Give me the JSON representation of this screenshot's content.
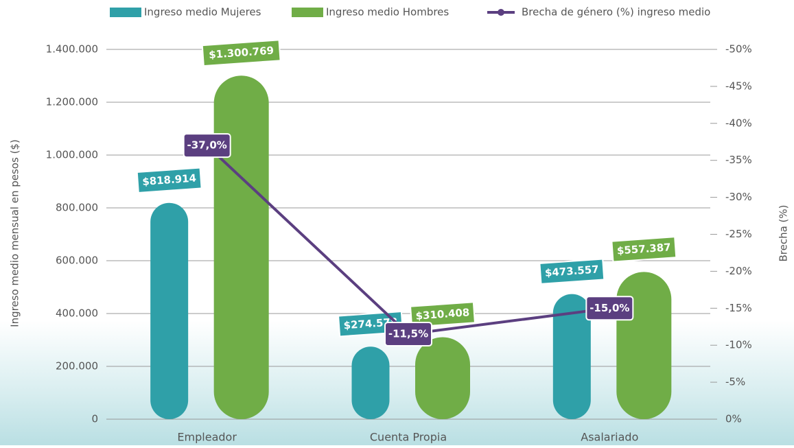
{
  "chart_data": {
    "type": "bar",
    "categories": [
      "Empleador",
      "Cuenta Propia",
      "Asalariado"
    ],
    "series": [
      {
        "name": "Ingreso medio Mujeres",
        "color": "#2fa0a8",
        "values": [
          818914,
          274578,
          473557
        ],
        "value_labels": [
          "$818.914",
          "$274.578",
          "$473.557"
        ]
      },
      {
        "name": "Ingreso medio Hombres",
        "color": "#70ad47",
        "values": [
          1300769,
          310408,
          557387
        ],
        "value_labels": [
          "$1.300.769",
          "$310.408",
          "$557.387"
        ]
      },
      {
        "name": "Brecha de género (%) ingreso medio",
        "type": "line",
        "axis": "y2",
        "color": "#5b3f80",
        "values": [
          -37.0,
          -11.5,
          -15.0
        ],
        "value_labels": [
          "-37,0%",
          "-11,5%",
          "-15,0%"
        ]
      }
    ],
    "ylabel": "Ingreso medio mensual en pesos ($)",
    "y2label": "Brecha (%)",
    "ylim": [
      0,
      1400000
    ],
    "yticks": [
      0,
      {
        "value": 200000,
        "label": "200.000"
      },
      {
        "value": 400000,
        "label": "400.000"
      },
      {
        "value": 600000,
        "label": "600.000"
      },
      {
        "value": 800000,
        "label": "800.000"
      },
      {
        "value": 1000000,
        "label": "1.000.000"
      },
      {
        "value": 1200000,
        "label": "1.200.000"
      },
      {
        "value": 1400000,
        "label": "1.400.000"
      }
    ],
    "y2lim": [
      0,
      -50
    ],
    "y2ticks": [
      {
        "value": 0,
        "label": "0%"
      },
      {
        "value": -5,
        "label": "-5%"
      },
      {
        "value": -10,
        "label": "-10%"
      },
      {
        "value": -15,
        "label": "-15%"
      },
      {
        "value": -20,
        "label": "-20%"
      },
      {
        "value": -25,
        "label": "-25%"
      },
      {
        "value": -30,
        "label": "-30%"
      },
      {
        "value": -35,
        "label": "-35%"
      },
      {
        "value": -40,
        "label": "-40%"
      },
      {
        "value": -45,
        "label": "-45%"
      },
      {
        "value": -50,
        "label": "-50%"
      }
    ],
    "grid": true,
    "legend": "top"
  }
}
